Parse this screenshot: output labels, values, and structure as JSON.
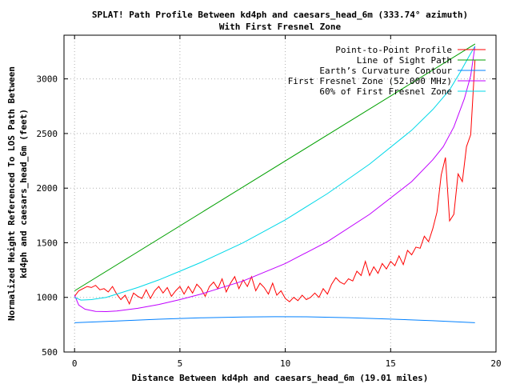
{
  "chart_data": {
    "type": "line",
    "title": "SPLAT! Path Profile Between kd4ph and caesars_head_6m (333.74° azimuth)",
    "subtitle": "With First Fresnel Zone",
    "xlabel": "Distance Between kd4ph and caesars_head_6m (19.01 miles)",
    "ylabel_line1": "Normalized Height Referenced To LOS Path Between",
    "ylabel_line2": "kd4ph and caesars_head_6m (feet)",
    "xlim": [
      -0.5,
      20
    ],
    "ylim": [
      500,
      3400
    ],
    "xticks": [
      0,
      5,
      10,
      15,
      20
    ],
    "yticks": [
      500,
      1000,
      1500,
      2000,
      2500,
      3000
    ],
    "grid": true,
    "legend_position": "top-right",
    "series": [
      {
        "name": "Point-to-Point Profile",
        "color": "#ff0000",
        "x": [
          0,
          0.2,
          0.4,
          0.6,
          0.8,
          1.0,
          1.2,
          1.4,
          1.6,
          1.8,
          2.0,
          2.2,
          2.4,
          2.6,
          2.8,
          3.0,
          3.2,
          3.4,
          3.6,
          3.8,
          4.0,
          4.2,
          4.4,
          4.6,
          4.8,
          5.0,
          5.2,
          5.4,
          5.6,
          5.8,
          6.0,
          6.2,
          6.4,
          6.6,
          6.8,
          7.0,
          7.2,
          7.4,
          7.6,
          7.8,
          8.0,
          8.2,
          8.4,
          8.6,
          8.8,
          9.0,
          9.2,
          9.4,
          9.6,
          9.8,
          10.0,
          10.2,
          10.4,
          10.6,
          10.8,
          11.0,
          11.2,
          11.4,
          11.6,
          11.8,
          12.0,
          12.2,
          12.4,
          12.6,
          12.8,
          13.0,
          13.2,
          13.4,
          13.6,
          13.8,
          14.0,
          14.2,
          14.4,
          14.6,
          14.8,
          15.0,
          15.2,
          15.4,
          15.6,
          15.8,
          16.0,
          16.2,
          16.4,
          16.6,
          16.8,
          17.0,
          17.2,
          17.4,
          17.6,
          17.8,
          18.0,
          18.2,
          18.4,
          18.6,
          18.8,
          19.0
        ],
        "values": [
          1010,
          1060,
          1080,
          1100,
          1090,
          1110,
          1070,
          1080,
          1050,
          1100,
          1030,
          980,
          1020,
          940,
          1040,
          1010,
          990,
          1070,
          990,
          1060,
          1100,
          1040,
          1090,
          1010,
          1060,
          1100,
          1030,
          1100,
          1040,
          1120,
          1080,
          1010,
          1100,
          1140,
          1080,
          1170,
          1050,
          1130,
          1190,
          1080,
          1160,
          1100,
          1190,
          1060,
          1130,
          1090,
          1030,
          1130,
          1020,
          1060,
          990,
          960,
          1000,
          970,
          1020,
          980,
          1000,
          1040,
          1000,
          1080,
          1030,
          1120,
          1180,
          1140,
          1120,
          1170,
          1150,
          1240,
          1200,
          1330,
          1200,
          1280,
          1220,
          1310,
          1260,
          1330,
          1290,
          1380,
          1300,
          1430,
          1390,
          1460,
          1450,
          1560,
          1510,
          1630,
          1780,
          2120,
          2280,
          1700,
          1760,
          2130,
          2060,
          2380,
          2490,
          3170
        ]
      },
      {
        "name": "Line of Sight Path",
        "color": "#00a000",
        "x": [
          0,
          19.01
        ],
        "values": [
          1060,
          3320
        ]
      },
      {
        "name": "Earth’s Curvature Contour",
        "color": "#0080ff",
        "x": [
          0,
          2,
          4,
          6,
          8,
          9.5,
          11,
          13,
          15,
          17,
          19
        ],
        "values": [
          768,
          784,
          800,
          813,
          821,
          823,
          822,
          814,
          801,
          786,
          768
        ]
      },
      {
        "name": "First Fresnel Zone (52.000 MHz)",
        "color": "#c000ff",
        "x": [
          0,
          0.2,
          0.5,
          1.0,
          1.5,
          2,
          3,
          4,
          5,
          6,
          8,
          10,
          12,
          14,
          16,
          17,
          17.5,
          18,
          18.5,
          18.8,
          19.0
        ],
        "values": [
          1020,
          930,
          892,
          872,
          870,
          875,
          900,
          935,
          980,
          1030,
          1150,
          1310,
          1510,
          1760,
          2060,
          2260,
          2380,
          2560,
          2820,
          3030,
          3300
        ]
      },
      {
        "name": "60% of First Fresnel Zone",
        "color": "#00d8e8",
        "x": [
          0,
          0.3,
          0.8,
          1.5,
          2,
          3,
          4,
          5,
          6,
          8,
          10,
          12,
          14,
          16,
          17,
          17.8,
          18.3,
          18.7,
          19.0
        ],
        "values": [
          1000,
          975,
          980,
          1000,
          1030,
          1090,
          1160,
          1240,
          1320,
          1500,
          1710,
          1950,
          2220,
          2530,
          2720,
          2900,
          3060,
          3200,
          3300
        ]
      }
    ]
  }
}
